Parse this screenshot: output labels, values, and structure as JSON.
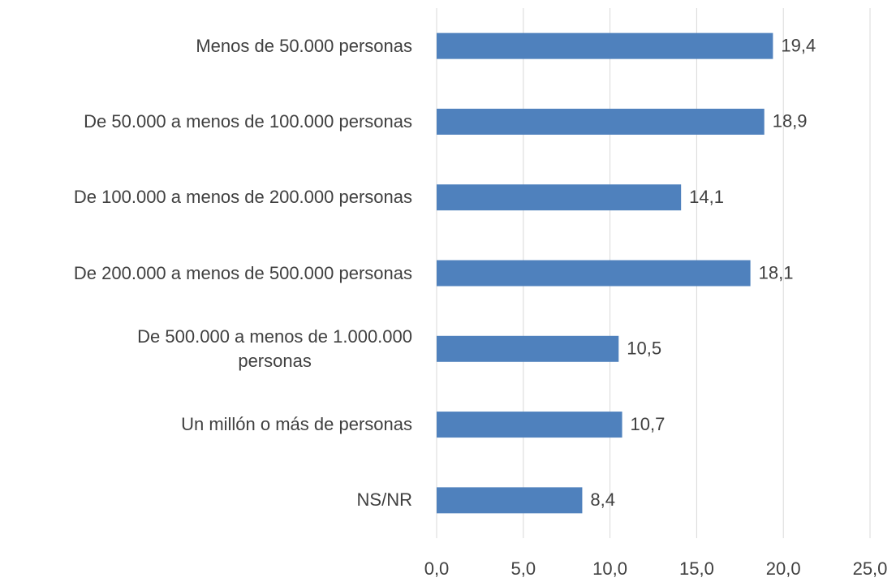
{
  "chart_data": {
    "type": "bar",
    "orientation": "horizontal",
    "categories": [
      "Menos de 50.000 personas",
      "De 50.000 a menos de 100.000 personas",
      "De 100.000 a menos de 200.000 personas",
      "De 200.000 a menos de 500.000 personas",
      "De 500.000 a menos de 1.000.000\npersonas",
      "Un millón o más de personas",
      "NS/NR"
    ],
    "values": [
      19.4,
      18.9,
      14.1,
      18.1,
      10.5,
      10.7,
      8.4
    ],
    "value_labels": [
      "19,4",
      "18,9",
      "14,1",
      "18,1",
      "10,5",
      "10,7",
      "8,4"
    ],
    "color": "#4f81bd",
    "xlim": [
      0,
      25
    ],
    "xticks": [
      {
        "value": 0,
        "label": "0,0"
      },
      {
        "value": 5,
        "label": "5,0"
      },
      {
        "value": 10,
        "label": "10,0"
      },
      {
        "value": 15,
        "label": "15,0"
      },
      {
        "value": 20,
        "label": "20,0"
      },
      {
        "value": 25,
        "label": "25,0"
      }
    ],
    "grid": true
  }
}
